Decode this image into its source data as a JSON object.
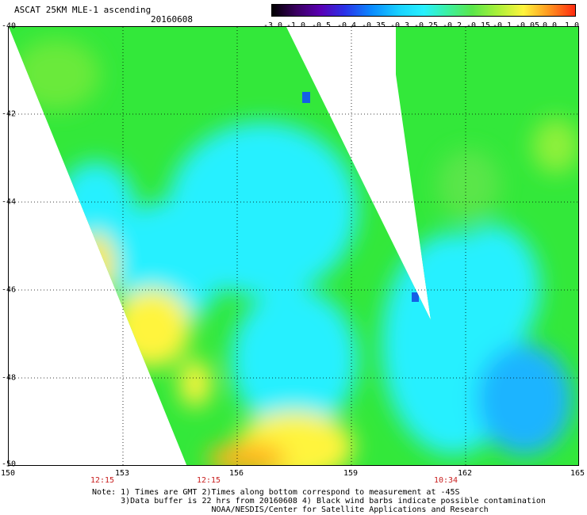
{
  "header": {
    "title": "ASCAT 25KM MLE-1 ascending",
    "date": "20160608"
  },
  "colorbar": {
    "labels": [
      "-3.0",
      "-1.0",
      "-0.5",
      "-0.4",
      "-0.35",
      "-0.3",
      "-0.25",
      "-0.2",
      "-0.15",
      "-0.1",
      "-0.05",
      "0.0",
      "1.0"
    ]
  },
  "axes": {
    "lat_labels": [
      "-40",
      "-42",
      "-44",
      "-46",
      "-48",
      "-50"
    ],
    "lon_labels": [
      "150",
      "153",
      "156",
      "159",
      "162",
      "165"
    ],
    "time_labels": [
      "12:15",
      "12:15",
      "10:34"
    ]
  },
  "notes": {
    "line1": "Note: 1) Times are GMT 2)Times along bottom correspond to measurement at -45S",
    "line2": "      3)Data buffer is 22 hrs from 20160608 4) Black wind barbs indicate possible contamination",
    "line3": "                         NOAA/NESDIS/Center for Satellite Applications and Research"
  },
  "colors": {
    "green": "#33e83a",
    "cyan": "#27f0ff",
    "blue": "#0a8cff",
    "yellow": "#fff43c",
    "orange": "#ff8a20",
    "gap": "#ffffff"
  }
}
